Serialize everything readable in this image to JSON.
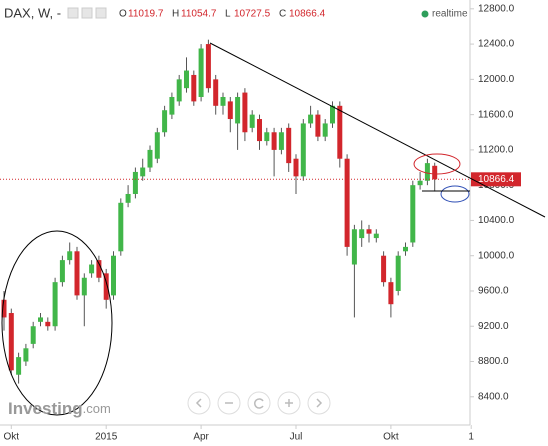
{
  "chart_data": {
    "type": "candlestick",
    "title": "DAX, W, -",
    "ohlc_labels": [
      "O",
      "H",
      "L",
      "C"
    ],
    "status": "realtime",
    "watermark": {
      "brand": "Investing",
      "suffix": ".com"
    },
    "categories": [
      null,
      "Okt",
      null,
      null,
      null,
      null,
      null,
      null,
      null,
      null,
      null,
      null,
      null,
      null,
      "2015",
      null,
      null,
      null,
      null,
      null,
      null,
      null,
      null,
      null,
      null,
      null,
      null,
      "Apr",
      null,
      null,
      null,
      null,
      null,
      null,
      null,
      null,
      null,
      null,
      null,
      null,
      "Jul",
      null,
      null,
      null,
      null,
      null,
      null,
      null,
      null,
      null,
      null,
      null,
      null,
      "Okt",
      null,
      null,
      null,
      null,
      null,
      null,
      null,
      null,
      null,
      null,
      "1"
    ],
    "open": [
      9500,
      9350,
      8650,
      8800,
      9000,
      9250,
      9250,
      9200,
      9700,
      9950,
      10050,
      9550,
      9800,
      9950,
      9800,
      9550,
      10050,
      10600,
      10700,
      10900,
      11000,
      11100,
      11400,
      11600,
      11750,
      11900,
      12050,
      11800,
      12400,
      12000,
      11700,
      11750,
      11500,
      11850,
      11450,
      11550,
      11300,
      11400,
      11200,
      11450,
      11100,
      10900,
      11500,
      11600,
      11350,
      11500,
      11700,
      11100,
      9900,
      10200,
      10300,
      10200,
      10000,
      9700,
      9600,
      10050,
      10150,
      10800,
      10850,
      11019.7,
      null,
      null,
      null,
      null,
      null
    ],
    "high": [
      9600,
      9400,
      8900,
      9000,
      9250,
      9350,
      9300,
      9750,
      10000,
      10150,
      10100,
      9800,
      9950,
      10000,
      9850,
      10050,
      10650,
      10800,
      11000,
      11100,
      11250,
      11450,
      11700,
      11850,
      12050,
      12250,
      12100,
      12400,
      12450,
      12050,
      11850,
      11800,
      11850,
      11900,
      11650,
      11600,
      11450,
      11450,
      11450,
      11500,
      11150,
      11550,
      11700,
      11650,
      11550,
      11750,
      11750,
      11150,
      10350,
      10400,
      10350,
      10300,
      10050,
      9750,
      10050,
      10150,
      10850,
      10950,
      11100,
      11054.7,
      null,
      null,
      null,
      null,
      null
    ],
    "low": [
      9150,
      8650,
      8550,
      8750,
      8950,
      9200,
      9150,
      9150,
      9650,
      9900,
      9500,
      9200,
      9750,
      9700,
      9400,
      9500,
      10000,
      10550,
      10650,
      10850,
      10950,
      11050,
      11350,
      11550,
      11700,
      11850,
      11700,
      11750,
      11850,
      11600,
      11600,
      11400,
      11200,
      11300,
      11400,
      11200,
      11250,
      10900,
      11150,
      10950,
      10700,
      10850,
      11450,
      11300,
      11300,
      11450,
      11000,
      10000,
      9300,
      10100,
      10150,
      10150,
      9650,
      9300,
      9550,
      10000,
      10100,
      10750,
      10800,
      10727.5,
      null,
      null,
      null,
      null,
      null
    ],
    "close": [
      9300,
      8700,
      8850,
      8950,
      9200,
      9300,
      9200,
      9700,
      9950,
      10050,
      9550,
      9750,
      9900,
      9750,
      9500,
      10000,
      10600,
      10700,
      10950,
      11000,
      11200,
      11400,
      11650,
      11800,
      12000,
      12100,
      11750,
      12350,
      11900,
      11700,
      11800,
      11550,
      11800,
      11400,
      11600,
      11300,
      11400,
      11200,
      11400,
      11050,
      10900,
      11500,
      11600,
      11350,
      11500,
      11700,
      11100,
      10100,
      10300,
      10300,
      10250,
      10250,
      9700,
      9450,
      10000,
      10100,
      10800,
      10850,
      11050,
      10866.4,
      null,
      null,
      null,
      null,
      null
    ],
    "up_color": "#41b649",
    "down_color": "#d2262c",
    "ylim": [
      8080,
      12900
    ],
    "yticks": [
      {
        "value": 8400,
        "label": "8400.0"
      },
      {
        "value": 8800,
        "label": "8800.0"
      },
      {
        "value": 9200,
        "label": "9200.0"
      },
      {
        "value": 9600,
        "label": "9600.0"
      },
      {
        "value": 10000,
        "label": "10000.0"
      },
      {
        "value": 10400,
        "label": "10400.0"
      },
      {
        "value": 10800,
        "label": "10800.0"
      },
      {
        "value": 11200,
        "label": "11200.0"
      },
      {
        "value": 11600,
        "label": "11600.0"
      },
      {
        "value": 12000,
        "label": "12000.0"
      },
      {
        "value": 12400,
        "label": "12400.0"
      },
      {
        "value": 12800,
        "label": "12800.0"
      }
    ]
  }
}
